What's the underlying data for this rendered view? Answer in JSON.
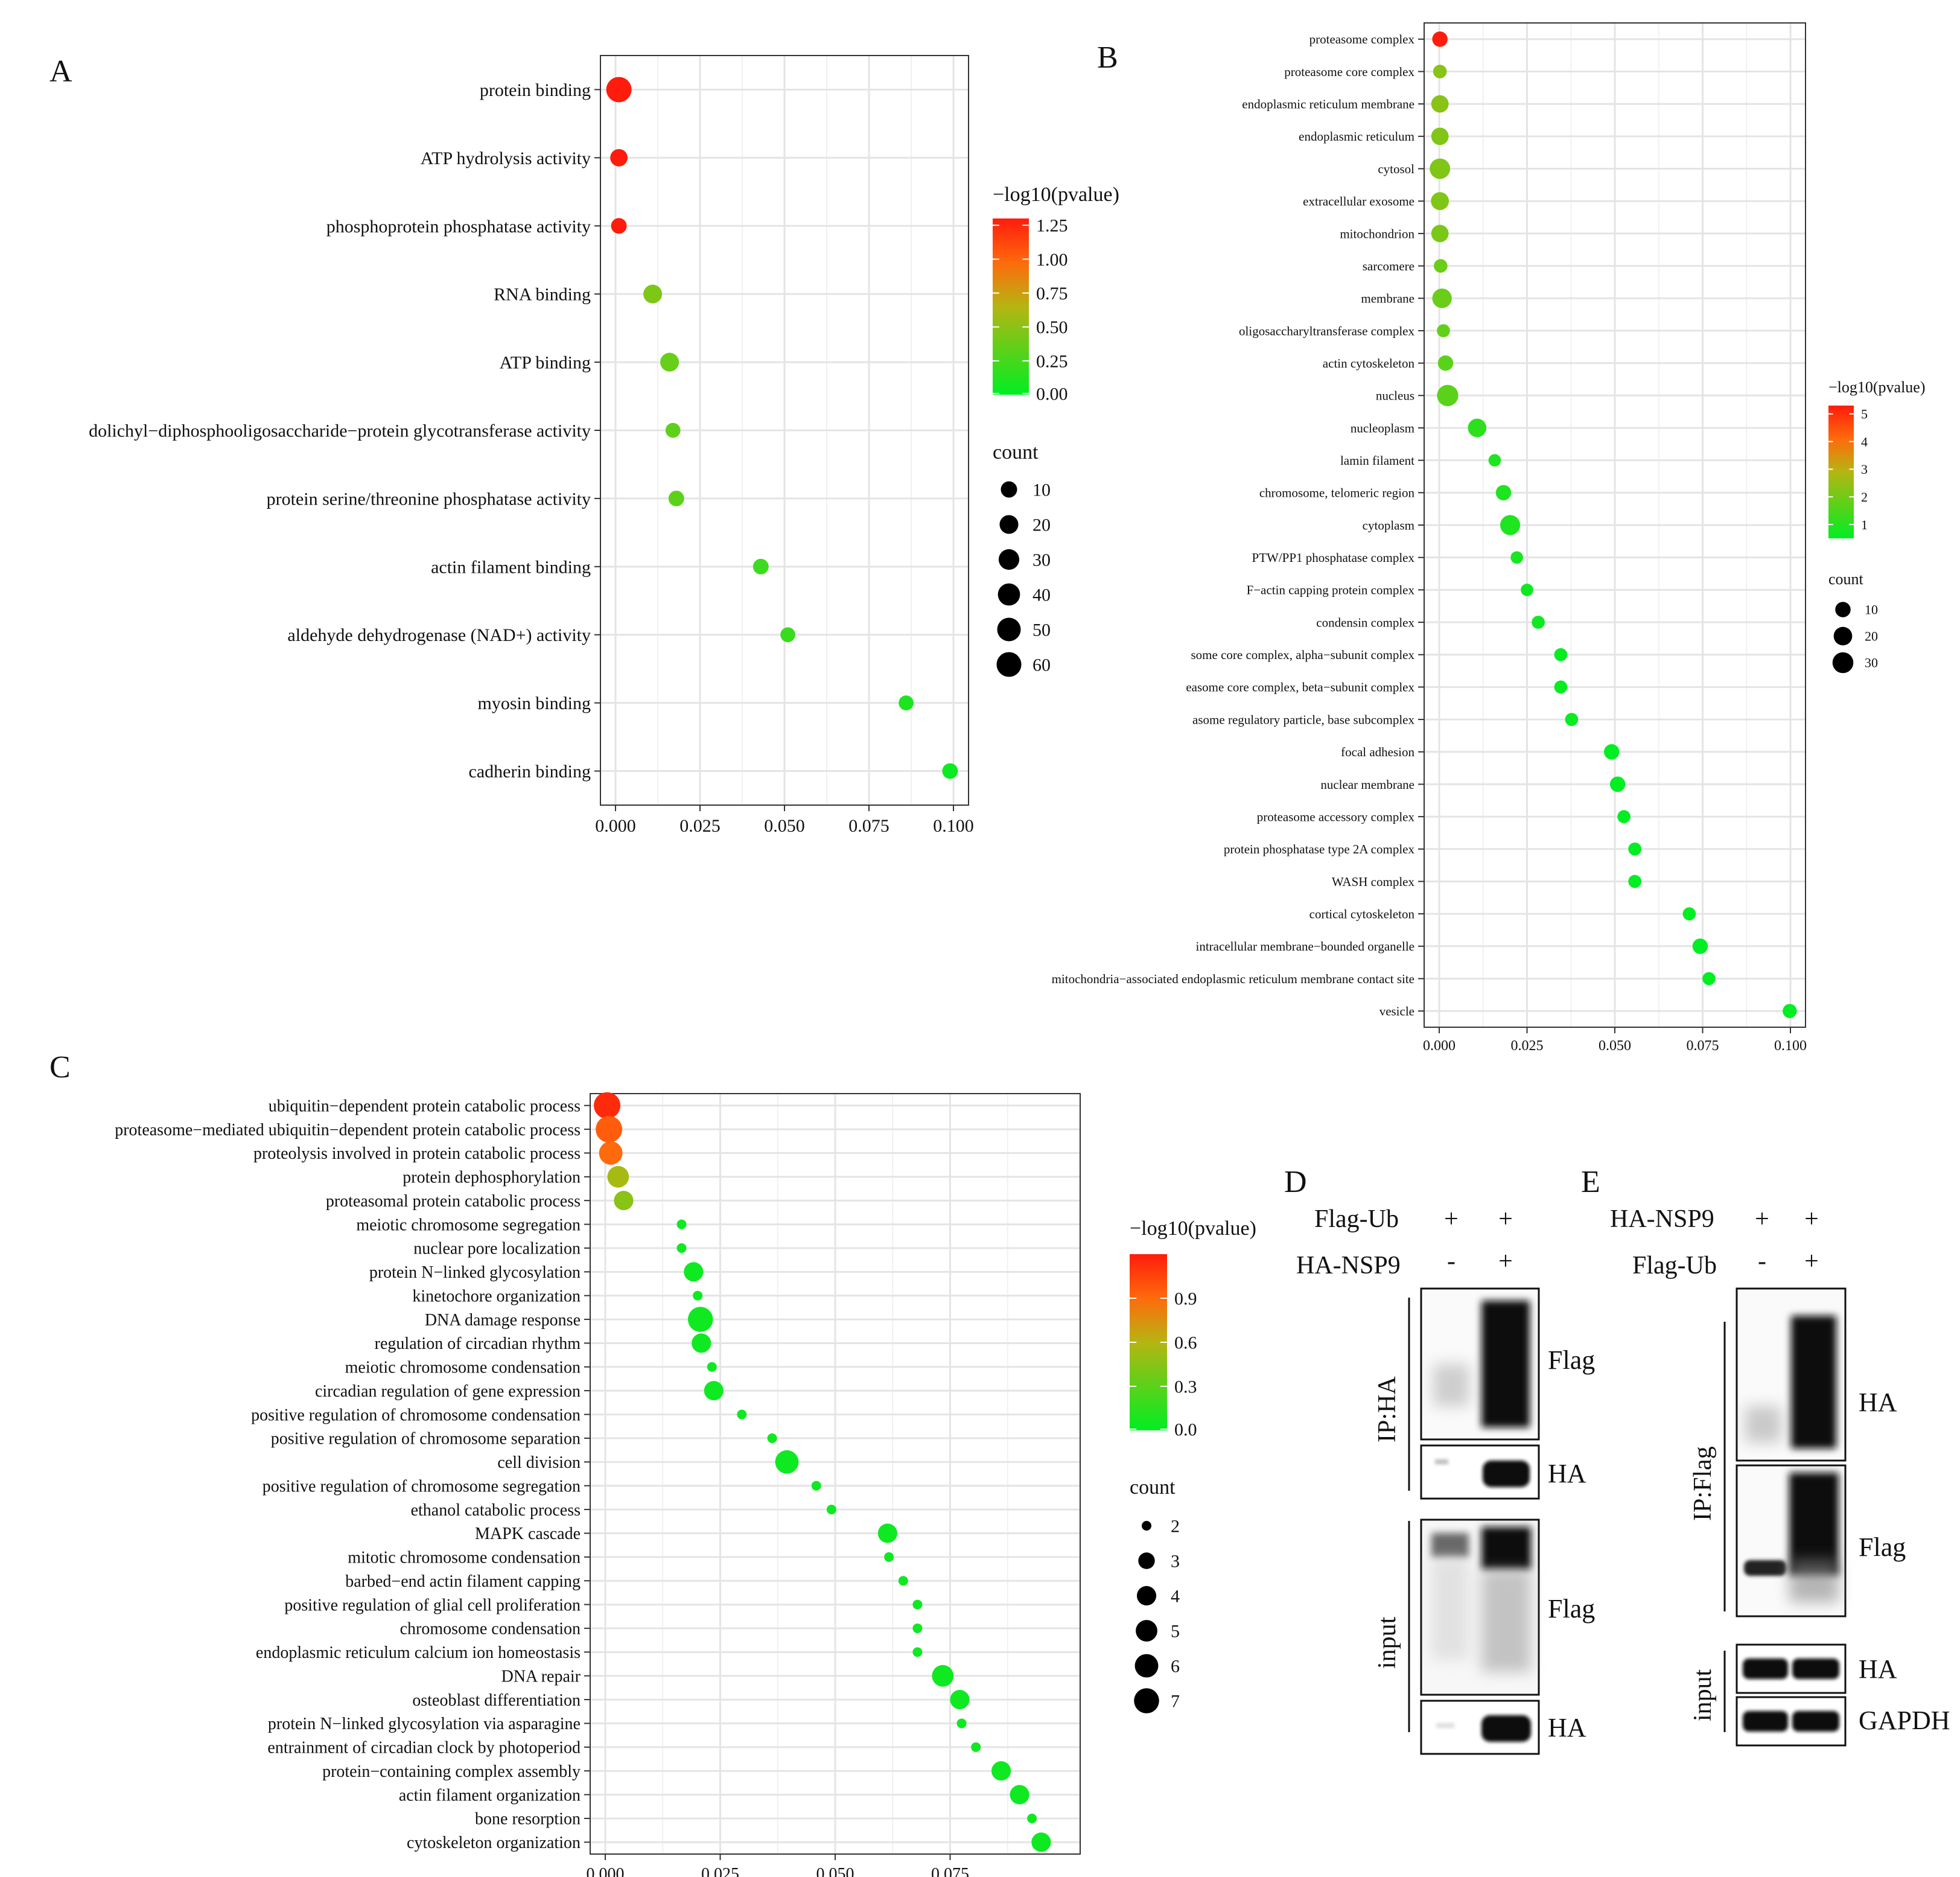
{
  "chart_data": [
    {
      "panel": "A",
      "type": "scatter",
      "xlim": [
        0,
        0.1
      ],
      "x_ticks": [
        "0.000",
        "0.025",
        "0.050",
        "0.075",
        "0.100"
      ],
      "x_tick_values": [
        0,
        0.025,
        0.05,
        0.075,
        0.1
      ],
      "categories": [
        "protein binding",
        "ATP hydrolysis activity",
        "phosphoprotein phosphatase activity",
        "RNA binding",
        "ATP binding",
        "dolichyl−diphosphooligosaccharide−protein glycotransferase activity",
        "protein serine/threonine phosphatase activity",
        "actin filament binding",
        "aldehyde dehydrogenase (NAD+) activity",
        "myosin binding",
        "cadherin binding"
      ],
      "x": [
        0.001,
        0.001,
        0.001,
        0.011,
        0.016,
        0.017,
        0.018,
        0.043,
        0.051,
        0.086,
        0.099
      ],
      "neglog10p": [
        1.3,
        1.3,
        1.3,
        0.45,
        0.37,
        0.34,
        0.33,
        0.22,
        0.2,
        0.1,
        0.05
      ],
      "count": [
        65,
        14,
        8,
        20,
        20,
        6,
        8,
        8,
        6,
        6,
        8
      ],
      "color_scale": {
        "min": 0,
        "max": 1.3
      },
      "colorbar_title": "−log10(pvalue)",
      "colorbar_ticks": [
        "1.25",
        "1.00",
        "0.75",
        "0.50",
        "0.25",
        "0.00"
      ],
      "colorbar_tick_values": [
        1.25,
        1.0,
        0.75,
        0.5,
        0.25,
        0.0
      ],
      "size_title": "count",
      "size_ticks": [
        "10",
        "20",
        "30",
        "40",
        "50",
        "60"
      ],
      "size_tick_values": [
        10,
        20,
        30,
        40,
        50,
        60
      ],
      "size_range": [
        1,
        65
      ]
    },
    {
      "panel": "B",
      "type": "scatter",
      "xlim": [
        0,
        0.1
      ],
      "x_ticks": [
        "0.000",
        "0.025",
        "0.050",
        "0.075",
        "0.100"
      ],
      "x_tick_values": [
        0,
        0.025,
        0.05,
        0.075,
        0.1
      ],
      "categories": [
        "proteasome complex",
        "proteasome core complex",
        "endoplasmic reticulum membrane",
        "endoplasmic reticulum",
        "cytosol",
        "extracellular exosome",
        "mitochondrion",
        "sarcomere",
        "membrane",
        "oligosaccharyltransferase complex",
        "actin cytoskeleton",
        "nucleus",
        "nucleoplasm",
        "lamin filament",
        "chromosome, telomeric region",
        "cytoplasm",
        "PTW/PP1 phosphatase complex",
        "F−actin capping protein complex",
        "condensin complex",
        "some core complex, alpha−subunit complex",
        "easome core complex, beta−subunit complex",
        "asome regulatory particle, base subcomplex",
        "focal adhesion",
        "nuclear membrane",
        "proteasome accessory complex",
        "protein phosphatase type 2A complex",
        "WASH complex",
        "cortical cytoskeleton",
        "intracellular membrane−bounded organelle",
        "mitochondria−associated endoplasmic reticulum membrane contact site",
        "vesicle"
      ],
      "x": [
        0.0002,
        0.0002,
        0.0002,
        0.0002,
        0.0002,
        0.0002,
        0.0002,
        0.0004,
        0.0008,
        0.0012,
        0.0018,
        0.0024,
        0.0108,
        0.0158,
        0.0183,
        0.0202,
        0.0221,
        0.025,
        0.0282,
        0.0346,
        0.0346,
        0.0377,
        0.0491,
        0.0508,
        0.0526,
        0.0557,
        0.0557,
        0.0712,
        0.0743,
        0.0768,
        0.0998
      ],
      "neglog10p": [
        5.3,
        2.3,
        2.3,
        2.2,
        2.2,
        2.2,
        2.1,
        1.9,
        1.9,
        1.8,
        1.7,
        1.7,
        1.1,
        0.9,
        0.9,
        0.9,
        0.8,
        0.7,
        0.7,
        0.6,
        0.6,
        0.6,
        0.5,
        0.5,
        0.5,
        0.4,
        0.4,
        0.4,
        0.3,
        0.3,
        0.3
      ],
      "count": [
        10,
        6,
        16,
        16,
        28,
        18,
        16,
        6,
        24,
        5,
        10,
        32,
        20,
        4,
        10,
        26,
        4,
        4,
        5,
        5,
        5,
        5,
        10,
        10,
        5,
        5,
        5,
        5,
        10,
        5,
        7
      ],
      "color_scale": {
        "min": 0.5,
        "max": 5.3
      },
      "colorbar_title": "−log10(pvalue)",
      "colorbar_ticks": [
        "5",
        "4",
        "3",
        "2",
        "1"
      ],
      "colorbar_tick_values": [
        5,
        4,
        3,
        2,
        1
      ],
      "size_title": "count",
      "size_ticks": [
        "10",
        "20",
        "30"
      ],
      "size_tick_values": [
        10,
        20,
        30
      ],
      "size_range": [
        1,
        34
      ]
    },
    {
      "panel": "C",
      "type": "scatter",
      "xlim": [
        0,
        0.1
      ],
      "x_ticks": [
        "0.000",
        "0.025",
        "0.050",
        "0.075"
      ],
      "x_tick_values": [
        0,
        0.025,
        0.05,
        0.075
      ],
      "categories": [
        "ubiquitin−dependent protein catabolic process",
        "proteasome−mediated ubiquitin−dependent protein catabolic process",
        "proteolysis involved in protein catabolic process",
        "protein dephosphorylation",
        "proteasomal protein catabolic process",
        "meiotic chromosome segregation",
        "nuclear pore localization",
        "protein N−linked glycosylation",
        "kinetochore organization",
        "DNA damage response",
        "regulation of circadian rhythm",
        "meiotic chromosome condensation",
        "circadian regulation of gene expression",
        "positive regulation of chromosome condensation",
        "positive regulation of chromosome separation",
        "cell division",
        "positive regulation of chromosome segregation",
        "ethanol catabolic process",
        "MAPK cascade",
        "mitotic chromosome condensation",
        "barbed−end actin filament capping",
        "positive regulation of glial cell proliferation",
        "chromosome condensation",
        "endoplasmic reticulum calcium ion homeostasis",
        "DNA repair",
        "osteoblast differentiation",
        "protein N−linked glycosylation via asparagine",
        "entrainment of circadian clock by photoperiod",
        "protein−containing complex assembly",
        "actin filament organization",
        "bone resorption",
        "cytoskeleton organization"
      ],
      "x": [
        0.0004,
        0.0008,
        0.0012,
        0.0028,
        0.004,
        0.0166,
        0.0166,
        0.0192,
        0.0201,
        0.0207,
        0.0209,
        0.0232,
        0.0236,
        0.0297,
        0.0363,
        0.0395,
        0.0459,
        0.0492,
        0.0614,
        0.0617,
        0.0648,
        0.0679,
        0.0679,
        0.0679,
        0.0734,
        0.0771,
        0.0775,
        0.0806,
        0.0861,
        0.0901,
        0.0928,
        0.0948
      ],
      "neglog10p": [
        1.15,
        0.95,
        0.9,
        0.55,
        0.45,
        0.05,
        0.05,
        0.05,
        0.05,
        0.05,
        0.05,
        0.05,
        0.05,
        0.05,
        0.05,
        0.05,
        0.05,
        0.05,
        0.05,
        0.05,
        0.05,
        0.05,
        0.05,
        0.05,
        0.05,
        0.05,
        0.05,
        0.05,
        0.05,
        0.05,
        0.05,
        0.05
      ],
      "count": [
        8,
        8,
        6,
        5,
        4,
        2,
        2,
        4,
        2,
        7,
        4,
        2,
        4,
        2,
        2,
        6,
        2,
        2,
        4,
        2,
        2,
        2,
        2,
        2,
        5,
        4,
        2,
        2,
        4,
        4,
        2,
        4
      ],
      "color_scale": {
        "min": 0,
        "max": 1.2
      },
      "colorbar_title": "−log10(pvalue)",
      "colorbar_ticks": [
        "0.9",
        "0.6",
        "0.3",
        "0.0"
      ],
      "colorbar_tick_values": [
        0.9,
        0.6,
        0.3,
        0.0
      ],
      "size_title": "count",
      "size_ticks": [
        "2",
        "3",
        "4",
        "5",
        "6",
        "7"
      ],
      "size_tick_values": [
        2,
        3,
        4,
        5,
        6,
        7
      ],
      "size_range": [
        2,
        8
      ]
    }
  ],
  "panels": {
    "a": {
      "letter": "A"
    },
    "b": {
      "letter": "B"
    },
    "c": {
      "letter": "C"
    },
    "d": {
      "letter": "D",
      "row1_label": "Flag-Ub",
      "row1_marks": [
        "+",
        "+"
      ],
      "row2_label": "HA-NSP9",
      "row2_marks": [
        "-",
        "+"
      ],
      "group_ip": "IP:HA",
      "group_input": "input",
      "blot_labels": [
        "Flag",
        "HA",
        "Flag",
        "HA"
      ]
    },
    "e": {
      "letter": "E",
      "row1_label": "HA-NSP9",
      "row1_marks": [
        "+",
        "+"
      ],
      "row2_label": "Flag-Ub",
      "row2_marks": [
        "-",
        "+"
      ],
      "group_ip": "IP:Flag",
      "group_input": "input",
      "blot_labels": [
        "HA",
        "Flag",
        "HA",
        "GAPDH"
      ]
    }
  },
  "colors": {
    "low": "#00ee22",
    "mid": "#b5b512",
    "high": "#ff1c0c",
    "grid": "#e6e6e6",
    "frame": "#333333",
    "blot_band": "#0c0c0c"
  }
}
